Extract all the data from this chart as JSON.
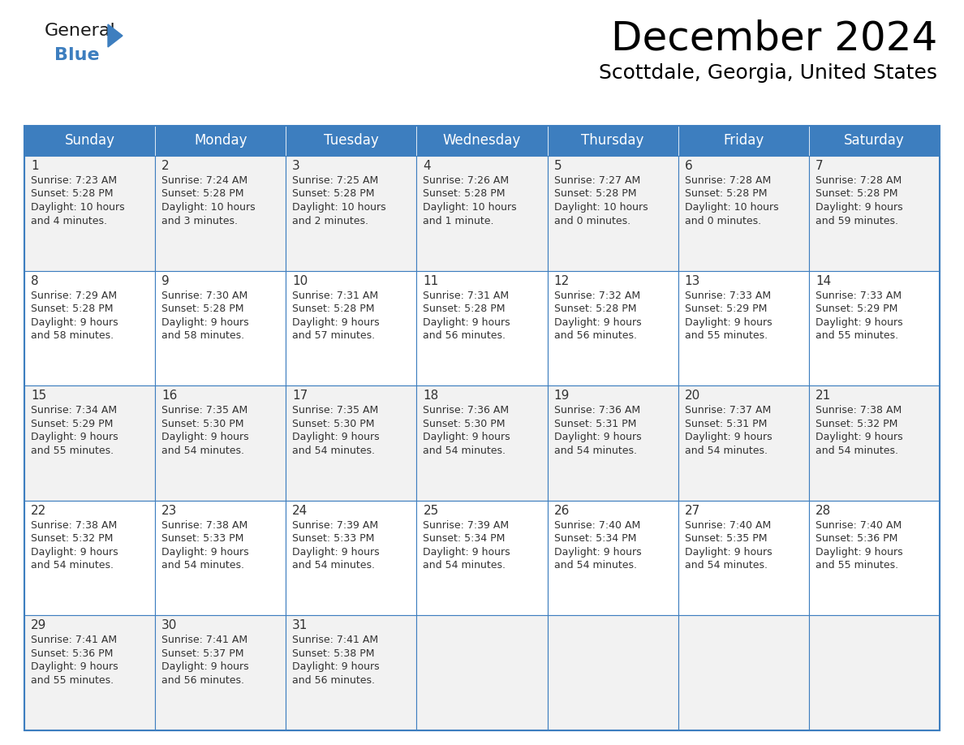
{
  "title": "December 2024",
  "subtitle": "Scottdale, Georgia, United States",
  "header_color": "#3d7ebf",
  "header_text_color": "#ffffff",
  "cell_bg_even": "#f2f2f2",
  "cell_bg_odd": "#ffffff",
  "border_color": "#3d7ebf",
  "border_color_light": "#aaaaaa",
  "day_number_color": "#333333",
  "cell_text_color": "#333333",
  "days_of_week": [
    "Sunday",
    "Monday",
    "Tuesday",
    "Wednesday",
    "Thursday",
    "Friday",
    "Saturday"
  ],
  "weeks": [
    [
      {
        "day": 1,
        "sunrise": "7:23 AM",
        "sunset": "5:28 PM",
        "daylight": "10 hours\nand 4 minutes."
      },
      {
        "day": 2,
        "sunrise": "7:24 AM",
        "sunset": "5:28 PM",
        "daylight": "10 hours\nand 3 minutes."
      },
      {
        "day": 3,
        "sunrise": "7:25 AM",
        "sunset": "5:28 PM",
        "daylight": "10 hours\nand 2 minutes."
      },
      {
        "day": 4,
        "sunrise": "7:26 AM",
        "sunset": "5:28 PM",
        "daylight": "10 hours\nand 1 minute."
      },
      {
        "day": 5,
        "sunrise": "7:27 AM",
        "sunset": "5:28 PM",
        "daylight": "10 hours\nand 0 minutes."
      },
      {
        "day": 6,
        "sunrise": "7:28 AM",
        "sunset": "5:28 PM",
        "daylight": "10 hours\nand 0 minutes."
      },
      {
        "day": 7,
        "sunrise": "7:28 AM",
        "sunset": "5:28 PM",
        "daylight": "9 hours\nand 59 minutes."
      }
    ],
    [
      {
        "day": 8,
        "sunrise": "7:29 AM",
        "sunset": "5:28 PM",
        "daylight": "9 hours\nand 58 minutes."
      },
      {
        "day": 9,
        "sunrise": "7:30 AM",
        "sunset": "5:28 PM",
        "daylight": "9 hours\nand 58 minutes."
      },
      {
        "day": 10,
        "sunrise": "7:31 AM",
        "sunset": "5:28 PM",
        "daylight": "9 hours\nand 57 minutes."
      },
      {
        "day": 11,
        "sunrise": "7:31 AM",
        "sunset": "5:28 PM",
        "daylight": "9 hours\nand 56 minutes."
      },
      {
        "day": 12,
        "sunrise": "7:32 AM",
        "sunset": "5:28 PM",
        "daylight": "9 hours\nand 56 minutes."
      },
      {
        "day": 13,
        "sunrise": "7:33 AM",
        "sunset": "5:29 PM",
        "daylight": "9 hours\nand 55 minutes."
      },
      {
        "day": 14,
        "sunrise": "7:33 AM",
        "sunset": "5:29 PM",
        "daylight": "9 hours\nand 55 minutes."
      }
    ],
    [
      {
        "day": 15,
        "sunrise": "7:34 AM",
        "sunset": "5:29 PM",
        "daylight": "9 hours\nand 55 minutes."
      },
      {
        "day": 16,
        "sunrise": "7:35 AM",
        "sunset": "5:30 PM",
        "daylight": "9 hours\nand 54 minutes."
      },
      {
        "day": 17,
        "sunrise": "7:35 AM",
        "sunset": "5:30 PM",
        "daylight": "9 hours\nand 54 minutes."
      },
      {
        "day": 18,
        "sunrise": "7:36 AM",
        "sunset": "5:30 PM",
        "daylight": "9 hours\nand 54 minutes."
      },
      {
        "day": 19,
        "sunrise": "7:36 AM",
        "sunset": "5:31 PM",
        "daylight": "9 hours\nand 54 minutes."
      },
      {
        "day": 20,
        "sunrise": "7:37 AM",
        "sunset": "5:31 PM",
        "daylight": "9 hours\nand 54 minutes."
      },
      {
        "day": 21,
        "sunrise": "7:38 AM",
        "sunset": "5:32 PM",
        "daylight": "9 hours\nand 54 minutes."
      }
    ],
    [
      {
        "day": 22,
        "sunrise": "7:38 AM",
        "sunset": "5:32 PM",
        "daylight": "9 hours\nand 54 minutes."
      },
      {
        "day": 23,
        "sunrise": "7:38 AM",
        "sunset": "5:33 PM",
        "daylight": "9 hours\nand 54 minutes."
      },
      {
        "day": 24,
        "sunrise": "7:39 AM",
        "sunset": "5:33 PM",
        "daylight": "9 hours\nand 54 minutes."
      },
      {
        "day": 25,
        "sunrise": "7:39 AM",
        "sunset": "5:34 PM",
        "daylight": "9 hours\nand 54 minutes."
      },
      {
        "day": 26,
        "sunrise": "7:40 AM",
        "sunset": "5:34 PM",
        "daylight": "9 hours\nand 54 minutes."
      },
      {
        "day": 27,
        "sunrise": "7:40 AM",
        "sunset": "5:35 PM",
        "daylight": "9 hours\nand 54 minutes."
      },
      {
        "day": 28,
        "sunrise": "7:40 AM",
        "sunset": "5:36 PM",
        "daylight": "9 hours\nand 55 minutes."
      }
    ],
    [
      {
        "day": 29,
        "sunrise": "7:41 AM",
        "sunset": "5:36 PM",
        "daylight": "9 hours\nand 55 minutes."
      },
      {
        "day": 30,
        "sunrise": "7:41 AM",
        "sunset": "5:37 PM",
        "daylight": "9 hours\nand 56 minutes."
      },
      {
        "day": 31,
        "sunrise": "7:41 AM",
        "sunset": "5:38 PM",
        "daylight": "9 hours\nand 56 minutes."
      },
      null,
      null,
      null,
      null
    ]
  ],
  "logo_color_general": "#1a1a1a",
  "logo_color_blue": "#3d7ebf",
  "title_fontsize": 36,
  "subtitle_fontsize": 18,
  "header_fontsize": 12,
  "day_num_fontsize": 11,
  "cell_text_fontsize": 9
}
